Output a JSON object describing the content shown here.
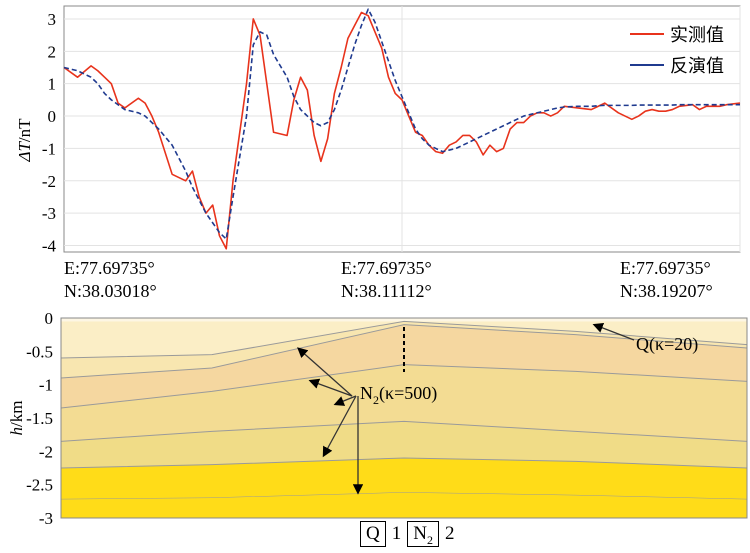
{
  "chart_data": [
    {
      "type": "line",
      "ylabel_prefix": "ΔT",
      "ylabel_unit": "nT",
      "ylim": [
        -4.2,
        3.4
      ],
      "yticks": [
        "3",
        "2",
        "1",
        "0",
        "-1",
        "-2",
        "-3",
        "-4"
      ],
      "x": [
        0.0,
        0.02,
        0.04,
        0.05,
        0.06,
        0.07,
        0.08,
        0.09,
        0.11,
        0.12,
        0.13,
        0.14,
        0.16,
        0.17,
        0.18,
        0.19,
        0.2,
        0.21,
        0.22,
        0.23,
        0.24,
        0.25,
        0.27,
        0.28,
        0.29,
        0.3,
        0.31,
        0.33,
        0.34,
        0.35,
        0.36,
        0.37,
        0.38,
        0.39,
        0.4,
        0.41,
        0.42,
        0.43,
        0.44,
        0.45,
        0.46,
        0.47,
        0.48,
        0.49,
        0.5,
        0.51,
        0.52,
        0.53,
        0.54,
        0.55,
        0.56,
        0.57,
        0.58,
        0.59,
        0.6,
        0.61,
        0.62,
        0.63,
        0.64,
        0.65,
        0.66,
        0.67,
        0.68,
        0.69,
        0.7,
        0.71,
        0.72,
        0.73,
        0.74,
        0.76,
        0.78,
        0.79,
        0.8,
        0.82,
        0.84,
        0.85,
        0.86,
        0.87,
        0.88,
        0.89,
        0.9,
        0.91,
        0.93,
        0.94,
        0.95,
        0.97,
        0.98,
        1.0
      ],
      "series": [
        {
          "name": "实测值",
          "color": "#e8331c",
          "dash": false,
          "values": [
            1.5,
            1.2,
            1.55,
            1.4,
            1.2,
            1.0,
            0.4,
            0.25,
            0.55,
            0.4,
            0.0,
            -0.5,
            -1.8,
            -1.9,
            -2.0,
            -1.7,
            -2.5,
            -3.0,
            -2.75,
            -3.7,
            -4.1,
            -2.0,
            1.0,
            3.0,
            2.5,
            1.0,
            -0.5,
            -0.6,
            0.5,
            1.2,
            0.8,
            -0.6,
            -1.4,
            -0.7,
            0.7,
            1.5,
            2.4,
            2.8,
            3.2,
            3.1,
            2.6,
            2.1,
            1.2,
            0.7,
            0.5,
            0.0,
            -0.5,
            -0.6,
            -0.9,
            -1.1,
            -1.15,
            -0.9,
            -0.8,
            -0.6,
            -0.6,
            -0.8,
            -1.2,
            -0.9,
            -1.1,
            -1.0,
            -0.4,
            -0.2,
            -0.2,
            0.0,
            0.1,
            0.1,
            0.0,
            0.1,
            0.3,
            0.25,
            0.2,
            0.3,
            0.4,
            0.1,
            -0.1,
            0.0,
            0.15,
            0.2,
            0.15,
            0.15,
            0.2,
            0.3,
            0.35,
            0.2,
            0.3,
            0.3,
            0.35,
            0.4
          ]
        },
        {
          "name": "反演值",
          "color": "#1f3a8f",
          "dash": true,
          "values": [
            1.5,
            1.4,
            1.2,
            1.0,
            0.7,
            0.5,
            0.35,
            0.2,
            0.1,
            0.0,
            -0.2,
            -0.4,
            -0.9,
            -1.3,
            -1.7,
            -2.2,
            -2.6,
            -3.0,
            -3.3,
            -3.6,
            -3.8,
            -2.5,
            0.0,
            2.2,
            2.6,
            2.5,
            1.9,
            1.2,
            0.6,
            0.2,
            0.0,
            -0.2,
            -0.3,
            -0.2,
            0.2,
            0.8,
            1.5,
            2.2,
            2.8,
            3.3,
            2.9,
            2.3,
            1.7,
            1.1,
            0.6,
            0.1,
            -0.4,
            -0.7,
            -0.9,
            -1.0,
            -1.1,
            -1.05,
            -1.0,
            -0.9,
            -0.8,
            -0.7,
            -0.6,
            -0.5,
            -0.4,
            -0.3,
            -0.2,
            -0.1,
            0.0,
            0.05,
            0.1,
            0.15,
            0.2,
            0.25,
            0.28,
            0.3,
            0.3,
            0.32,
            0.33,
            0.33,
            0.33,
            0.34,
            0.34,
            0.34,
            0.34,
            0.34,
            0.34,
            0.35,
            0.35,
            0.35,
            0.35,
            0.35,
            0.35,
            0.35
          ]
        }
      ],
      "coords": [
        {
          "e": "E:77.69735°",
          "n": "N:38.03018°"
        },
        {
          "e": "E:77.69735°",
          "n": "N:38.11112°"
        },
        {
          "e": "E:77.69735°",
          "n": "N:38.19207°"
        }
      ]
    },
    {
      "type": "area",
      "ylabel_prefix": "h",
      "ylabel_unit": "km",
      "ylim": [
        -3,
        0
      ],
      "yticks": [
        "0",
        "-0.5",
        "-1",
        "-1.5",
        "-2",
        "-2.5",
        "-3"
      ],
      "layers": [
        {
          "color": "#fdf6e4",
          "base": [
            -0.05,
            -0.05,
            -0.05,
            -0.05,
            -0.05
          ]
        },
        {
          "color": "#fbeec6",
          "base": [
            -0.6,
            -0.55,
            -0.05,
            -0.2,
            -0.4
          ]
        },
        {
          "color": "#f8e6b0",
          "base": [
            -0.9,
            -0.75,
            -0.1,
            -0.25,
            -0.45
          ]
        },
        {
          "color": "#f5d7a0",
          "base": [
            -1.35,
            -1.1,
            -0.7,
            -0.8,
            -0.95
          ]
        },
        {
          "color": "#f3dc93",
          "base": [
            -1.85,
            -1.7,
            -1.55,
            -1.7,
            -1.85
          ]
        },
        {
          "color": "#f0dc87",
          "base": [
            -2.25,
            -2.2,
            -2.1,
            -2.15,
            -2.25
          ]
        },
        {
          "color": "#ffdc18",
          "base": [
            -2.72,
            -2.7,
            -2.62,
            -2.66,
            -2.72
          ]
        }
      ],
      "annotations": {
        "n2_main": "N",
        "n2_sub": "2",
        "n2_rest": "(κ=500)",
        "q_label": "Q(κ=20)"
      },
      "legend": [
        {
          "sym": "Q",
          "num": "1"
        },
        {
          "sym_main": "N",
          "sym_sub": "2",
          "num": "2"
        }
      ]
    }
  ]
}
